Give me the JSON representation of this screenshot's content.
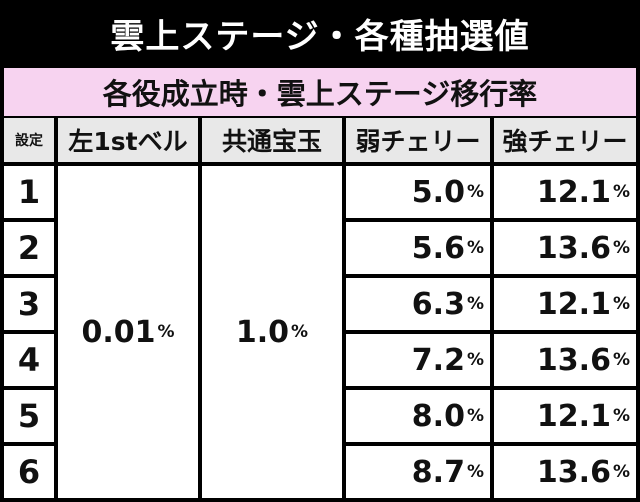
{
  "title": "雲上ステージ・各種抽選値",
  "subtitle": "各役成立時・雲上ステージ移行率",
  "headers": [
    "設定",
    "左1stベル",
    "共通宝玉",
    "弱チェリー",
    "強チェリー"
  ],
  "percent_unit": "%",
  "merged": {
    "left_bell": "0.01",
    "common_gem": "1.0"
  },
  "rows": [
    {
      "setting": "1",
      "weak": "5.0",
      "strong": "12.1"
    },
    {
      "setting": "2",
      "weak": "5.6",
      "strong": "13.6"
    },
    {
      "setting": "3",
      "weak": "6.3",
      "strong": "12.1"
    },
    {
      "setting": "4",
      "weak": "7.2",
      "strong": "13.6"
    },
    {
      "setting": "5",
      "weak": "8.0",
      "strong": "12.1"
    },
    {
      "setting": "6",
      "weak": "8.7",
      "strong": "13.6"
    }
  ]
}
